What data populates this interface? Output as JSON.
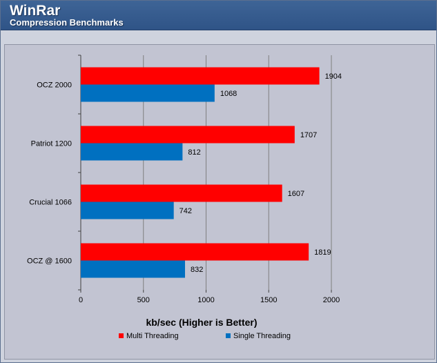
{
  "header": {
    "title": "WinRar",
    "subtitle": "Compression Benchmarks"
  },
  "colors": {
    "multi": "#ff0000",
    "single": "#0070c0",
    "header_bg": "#2f5487",
    "plot_bg": "#c2c4d2",
    "grid": "#7f7f7f"
  },
  "chart_data": {
    "type": "bar",
    "orientation": "horizontal",
    "categories": [
      "OCZ 2000",
      "Patriot 1200",
      "Crucial 1066",
      "OCZ @ 1600"
    ],
    "series": [
      {
        "name": "Multi Threading",
        "values": [
          1904,
          1707,
          1607,
          1819
        ]
      },
      {
        "name": "Single Threading",
        "values": [
          1068,
          812,
          742,
          832
        ]
      }
    ],
    "xlabel": "kb/sec (Higher is Better)",
    "ylabel": "",
    "xlim": [
      0,
      2000
    ],
    "xticks": [
      "0",
      "500",
      "1000",
      "1500",
      "2000"
    ],
    "grid": true,
    "legend": "bottom"
  }
}
